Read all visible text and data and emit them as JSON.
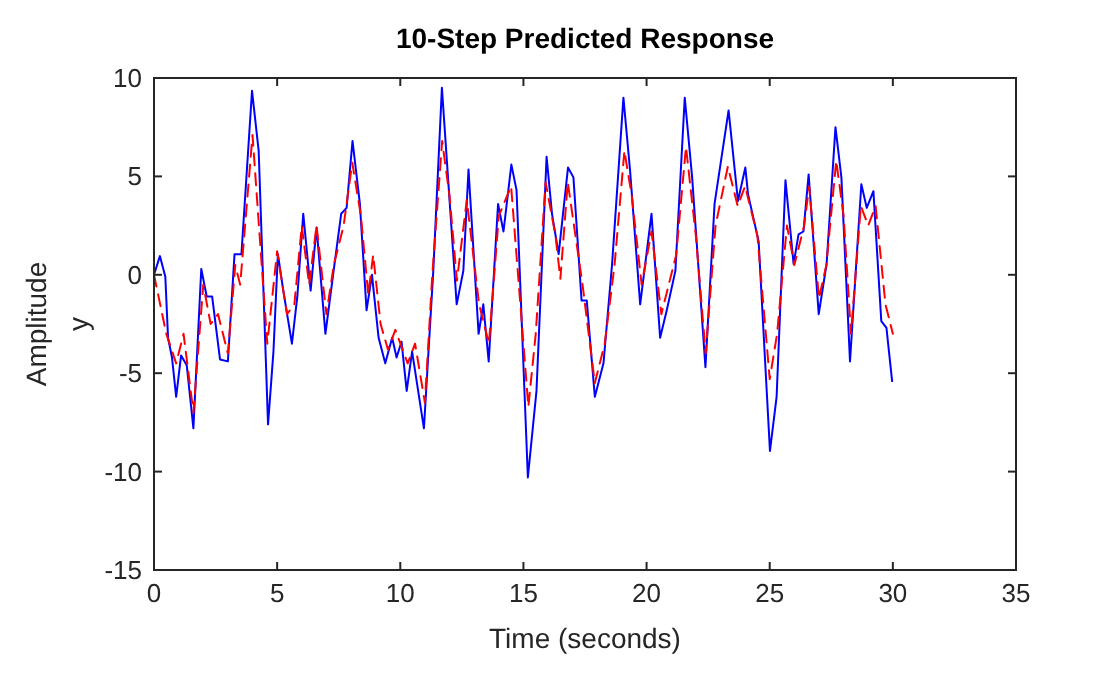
{
  "chart_data": {
    "type": "line",
    "title": "10-Step Predicted Response",
    "xlabel": "Time (seconds)",
    "ylabel": "Amplitude",
    "annotations": [
      "y"
    ],
    "xlim": [
      0,
      35
    ],
    "xticks": [
      0,
      5,
      10,
      15,
      20,
      25,
      30,
      35
    ],
    "ylim": [
      -15,
      10
    ],
    "yticks": [
      -15,
      -10,
      -5,
      0,
      5,
      10
    ],
    "grid": false,
    "series": [
      {
        "color": "#0000ff",
        "line_style": "solid",
        "x": [
          0,
          0.24,
          0.46,
          0.57,
          0.73,
          0.9,
          1.1,
          1.33,
          1.6,
          1.92,
          2.14,
          2.36,
          2.68,
          3.0,
          3.27,
          3.55,
          3.98,
          4.25,
          4.63,
          4.85,
          5.03,
          5.25,
          5.6,
          5.82,
          6.06,
          6.36,
          6.6,
          6.96,
          7.33,
          7.6,
          7.82,
          8.06,
          8.36,
          8.63,
          8.85,
          9.12,
          9.39,
          9.67,
          9.85,
          10.05,
          10.26,
          10.48,
          10.96,
          11.34,
          11.69,
          11.94,
          12.29,
          12.56,
          12.77,
          13.18,
          13.37,
          13.59,
          13.97,
          14.19,
          14.51,
          14.72,
          15.18,
          15.53,
          15.94,
          16.16,
          16.43,
          16.81,
          17.03,
          17.36,
          17.57,
          17.9,
          18.25,
          18.6,
          19.06,
          19.33,
          19.74,
          20.2,
          20.55,
          20.82,
          21.17,
          21.55,
          21.85,
          22.39,
          22.76,
          23.33,
          23.71,
          24.01,
          24.12,
          24.55,
          25.01,
          25.28,
          25.64,
          25.97,
          26.17,
          26.37,
          26.58,
          26.99,
          27.31,
          27.67,
          27.91,
          28.26,
          28.72,
          28.94,
          29.21,
          29.53,
          29.74,
          29.97
        ],
        "values": [
          0,
          0.95,
          -0.1,
          -3.2,
          -4.2,
          -6.2,
          -4.1,
          -4.6,
          -7.8,
          0.3,
          -1.1,
          -1.1,
          -4.3,
          -4.4,
          1.05,
          1.05,
          9.35,
          6.3,
          -7.6,
          -3.9,
          1.05,
          -0.8,
          -3.5,
          -1.1,
          3.1,
          -0.8,
          2.4,
          -3.0,
          0.55,
          3.1,
          3.4,
          6.8,
          3.6,
          -1.8,
          0,
          -3.2,
          -4.5,
          -3.2,
          -4.2,
          -3.4,
          -5.9,
          -3.9,
          -7.8,
          0.2,
          9.5,
          4.9,
          -1.5,
          0.2,
          5.35,
          -3.0,
          -1.5,
          -4.4,
          3.6,
          2.2,
          5.6,
          4.3,
          -10.3,
          -5.9,
          6.0,
          3.1,
          1.05,
          5.45,
          4.95,
          -1.3,
          -1.3,
          -6.2,
          -4.5,
          0.55,
          9.0,
          5.3,
          -1.5,
          3.1,
          -3.2,
          -1.8,
          0.2,
          9.0,
          4.95,
          -4.7,
          3.6,
          8.35,
          3.75,
          5.45,
          4.1,
          1.7,
          -8.95,
          -6.2,
          4.8,
          0.55,
          2.05,
          2.2,
          5.1,
          -2.0,
          0.55,
          7.5,
          4.95,
          -4.4,
          4.6,
          3.4,
          4.25,
          -2.35,
          -2.7,
          -5.4
        ]
      },
      {
        "color": "#ff0000",
        "line_style": "dashed",
        "x": [
          0,
          0.5,
          0.9,
          1.2,
          1.6,
          2.0,
          2.3,
          2.6,
          3.0,
          3.3,
          3.5,
          4.0,
          4.6,
          5.0,
          5.4,
          5.7,
          6.0,
          6.3,
          6.6,
          7.0,
          7.3,
          7.7,
          8.05,
          8.4,
          8.7,
          8.9,
          9.2,
          9.5,
          9.8,
          10.3,
          10.6,
          11.0,
          11.3,
          11.7,
          12.0,
          12.3,
          12.7,
          13.2,
          13.6,
          14.0,
          14.5,
          15.2,
          15.5,
          15.9,
          16.3,
          16.5,
          16.8,
          17.4,
          17.9,
          18.3,
          18.7,
          19.1,
          19.4,
          19.8,
          20.2,
          20.6,
          21.2,
          21.6,
          22.0,
          22.4,
          22.8,
          23.3,
          23.7,
          24.0,
          24.5,
          25.0,
          25.3,
          25.7,
          26.0,
          26.4,
          26.6,
          27.0,
          27.3,
          27.7,
          28.0,
          28.3,
          28.7,
          29.0,
          29.3,
          29.7,
          30.0
        ],
        "values": [
          0,
          -3,
          -4.5,
          -3,
          -7,
          -0.5,
          -2.5,
          -2,
          -4,
          0.5,
          -0.5,
          7.1,
          -3.5,
          1.2,
          -2,
          -1.5,
          2.5,
          -0.5,
          2.5,
          -2,
          0.5,
          2.5,
          5.7,
          3,
          -1,
          1,
          -2.5,
          -3.8,
          -2.8,
          -4.5,
          -3.5,
          -6.5,
          0,
          6.8,
          4,
          -0.3,
          3.8,
          -1.5,
          -3.5,
          3,
          4.5,
          -6.7,
          -3,
          4.7,
          2,
          -0.2,
          4.7,
          -0.5,
          -5.5,
          -3.5,
          0.5,
          6.3,
          4,
          -0.5,
          2.2,
          -2,
          1,
          6.5,
          2,
          -4,
          2.5,
          5.5,
          3.5,
          4.5,
          2,
          -5.3,
          -3,
          2.5,
          0.5,
          2.5,
          4.5,
          -1.2,
          0.5,
          5.8,
          3,
          -3,
          3.5,
          2.5,
          3.5,
          -1.5,
          -3.0
        ]
      }
    ]
  }
}
